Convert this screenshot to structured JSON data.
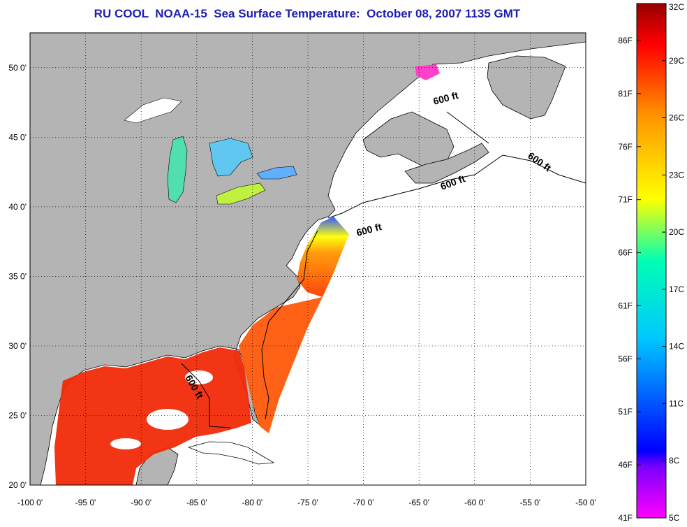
{
  "title": "RU COOL  NOAA-15  Sea Surface Temperature:  October 08, 2007 1135 GMT",
  "map": {
    "lon_labels": [
      "-100 0'",
      "-95 0'",
      "-90 0'",
      "-85 0'",
      "-80 0'",
      "-75 0'",
      "-70 0'",
      "-65 0'",
      "-60 0'",
      "-55 0'",
      "-50 0'"
    ],
    "lat_labels": [
      "50 0'",
      "45 0'",
      "40 0'",
      "35 0'",
      "30 0'",
      "25 0'",
      "20 0'"
    ],
    "lon_range": [
      -100,
      -50
    ],
    "lat_range": [
      20,
      52.5
    ],
    "grid": "dotted",
    "land_color": "#b4b4b4",
    "ocean_no_data_color": "#ffffff",
    "contour_labels": [
      "600 ft",
      "600 ft",
      "600 ft",
      "600 ft",
      "600 ft"
    ]
  },
  "colorbar": {
    "colors": [
      "#ff00ff",
      "#0000ff",
      "#00c8ff",
      "#00ffb4",
      "#ffff00",
      "#ff9600",
      "#ff0000",
      "#960000"
    ],
    "celsius_labels": [
      "32C",
      "29C",
      "26C",
      "23C",
      "20C",
      "17C",
      "14C",
      "11C",
      "8C",
      "5C"
    ],
    "fahrenheit_labels": [
      "86F",
      "81F",
      "76F",
      "71F",
      "66F",
      "61F",
      "56F",
      "51F",
      "46F",
      "41F"
    ]
  }
}
